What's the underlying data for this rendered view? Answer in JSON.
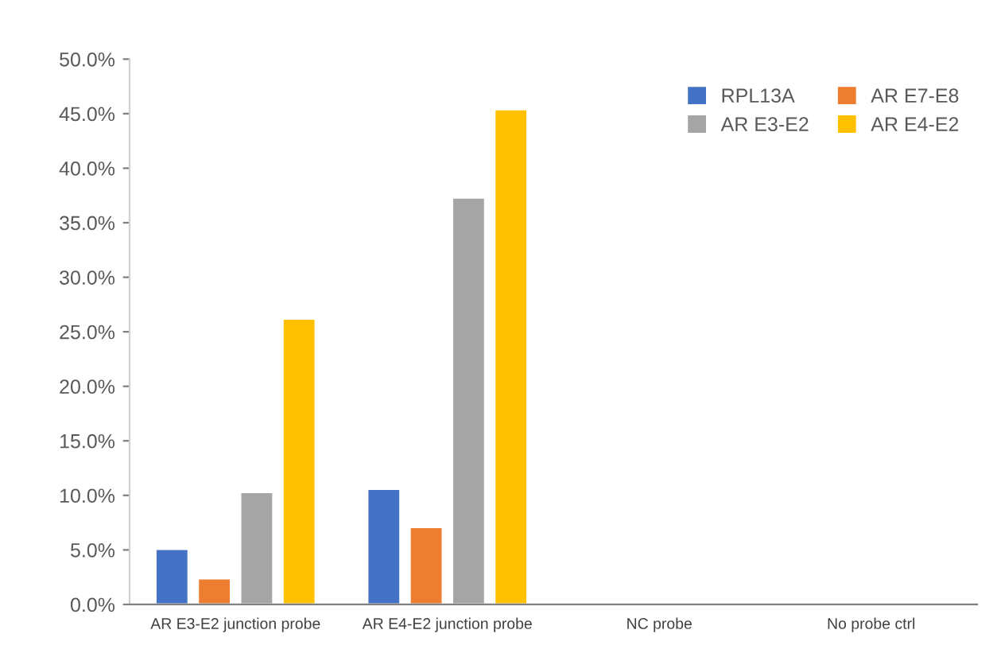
{
  "chart_data": {
    "type": "bar",
    "categories": [
      "AR E3-E2 junction probe",
      "AR E4-E2 junction probe",
      "NC probe",
      "No probe ctrl"
    ],
    "series": [
      {
        "name": "RPL13A",
        "color": "#4472c4",
        "values": [
          5.1,
          10.6,
          null,
          null
        ]
      },
      {
        "name": "AR E7-E8",
        "color": "#ed7d31",
        "values": [
          2.4,
          7.1,
          null,
          null
        ]
      },
      {
        "name": "AR E3-E2",
        "color": "#a5a5a5",
        "values": [
          10.3,
          37.3,
          null,
          null
        ]
      },
      {
        "name": "AR E4-E2",
        "color": "#ffc000",
        "values": [
          26.2,
          45.4,
          null,
          null
        ]
      }
    ],
    "ylim": [
      0,
      50
    ],
    "yticks": [
      {
        "value": 0,
        "label": "0.0%"
      },
      {
        "value": 5,
        "label": "5.0%"
      },
      {
        "value": 10,
        "label": "10.0%"
      },
      {
        "value": 15,
        "label": "15.0%"
      },
      {
        "value": 20,
        "label": "20.0%"
      },
      {
        "value": 25,
        "label": "25.0%"
      },
      {
        "value": 30,
        "label": "30.0%"
      },
      {
        "value": 35,
        "label": "35.0%"
      },
      {
        "value": 40,
        "label": "40.0%"
      },
      {
        "value": 45,
        "label": "45.0%"
      },
      {
        "value": 50,
        "label": "50.0%"
      }
    ],
    "grid": false,
    "legend": "top right"
  }
}
